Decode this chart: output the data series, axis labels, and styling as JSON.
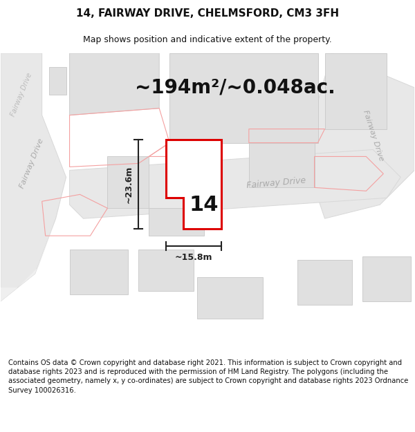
{
  "title": "14, FAIRWAY DRIVE, CHELMSFORD, CM3 3FH",
  "subtitle": "Map shows position and indicative extent of the property.",
  "area_text": "~194m²/~0.048ac.",
  "dimension_width": "~15.8m",
  "dimension_height": "~23.6m",
  "property_number": "14",
  "footer_text": "Contains OS data © Crown copyright and database right 2021. This information is subject to Crown copyright and database rights 2023 and is reproduced with the permission of HM Land Registry. The polygons (including the associated geometry, namely x, y co-ordinates) are subject to Crown copyright and database rights 2023 Ordnance Survey 100026316.",
  "map_bg": "#f5f5f5",
  "road_fill": "#e8e8e8",
  "road_edge": "#d8d8d8",
  "bld_fill": "#e0e0e0",
  "bld_edge": "#cccccc",
  "plot_outline": "#dd0000",
  "plot_fill": "#ffffff",
  "red_outline": "#f4a0a0",
  "red_lw": 0.8,
  "dim_color": "#222222",
  "road_label_color": "#aaaaaa",
  "title_fontsize": 11,
  "subtitle_fontsize": 9,
  "area_fontsize": 20,
  "number_fontsize": 22,
  "footer_fontsize": 7.2
}
